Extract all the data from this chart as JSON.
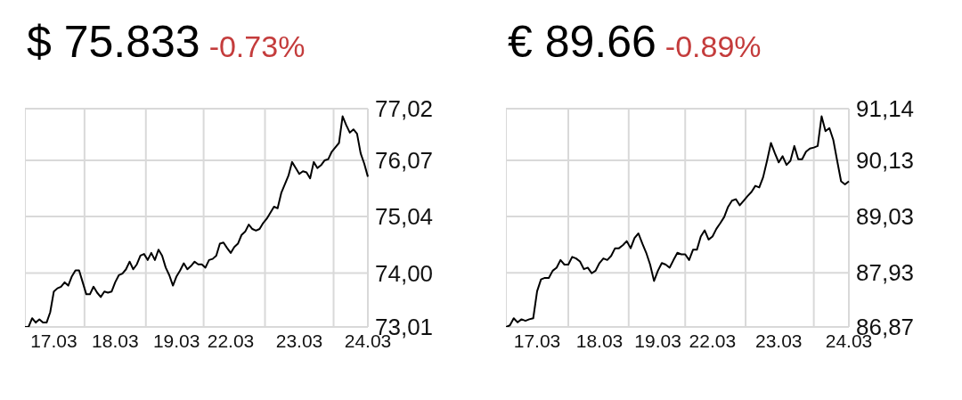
{
  "chart_data": [
    {
      "type": "line",
      "title": "$ 75.833",
      "subtitle": "-0.73%",
      "color": "#000000",
      "grid": true,
      "ylim": [
        73.01,
        77.02
      ],
      "yticks": [
        {
          "value": 73.01,
          "label": "73,01"
        },
        {
          "value": 74.0,
          "label": "74,00"
        },
        {
          "value": 75.04,
          "label": "75,04"
        },
        {
          "value": 76.07,
          "label": "76,07"
        },
        {
          "value": 77.02,
          "label": "77,02"
        }
      ],
      "categories": [
        null,
        null,
        null,
        null,
        null,
        null,
        null,
        null,
        "17.03",
        null,
        null,
        null,
        null,
        null,
        null,
        null,
        null,
        null,
        null,
        null,
        null,
        null,
        null,
        null,
        null,
        "18.03",
        null,
        null,
        null,
        null,
        null,
        null,
        null,
        null,
        null,
        null,
        null,
        null,
        null,
        null,
        null,
        null,
        "19.03",
        null,
        null,
        null,
        null,
        null,
        null,
        null,
        null,
        null,
        null,
        null,
        null,
        null,
        null,
        "22.03",
        null,
        null,
        null,
        null,
        null,
        null,
        null,
        null,
        null,
        null,
        null,
        null,
        null,
        null,
        null,
        null,
        null,
        null,
        "23.03",
        null,
        null,
        null,
        null,
        null,
        null,
        null,
        null,
        null,
        null,
        null,
        null,
        null,
        null,
        null,
        null,
        null,
        null,
        "24.03"
      ],
      "values": [
        73.01,
        73.01,
        73.17,
        73.09,
        73.15,
        73.09,
        73.09,
        73.28,
        73.66,
        73.72,
        73.75,
        73.83,
        73.77,
        73.94,
        74.05,
        74.05,
        73.83,
        73.61,
        73.61,
        73.75,
        73.64,
        73.56,
        73.66,
        73.64,
        73.66,
        73.83,
        73.96,
        73.99,
        74.07,
        74.21,
        74.07,
        74.16,
        74.32,
        74.35,
        74.24,
        74.37,
        74.24,
        74.43,
        74.32,
        74.1,
        73.96,
        73.77,
        73.94,
        74.05,
        74.18,
        74.07,
        74.13,
        74.21,
        74.16,
        74.16,
        74.1,
        74.24,
        74.26,
        74.32,
        74.54,
        74.56,
        74.46,
        74.37,
        74.48,
        74.54,
        74.7,
        74.76,
        74.89,
        74.81,
        74.78,
        74.81,
        74.92,
        75.0,
        75.11,
        75.22,
        75.19,
        75.47,
        75.63,
        75.79,
        76.04,
        75.93,
        75.82,
        75.87,
        75.85,
        75.74,
        76.04,
        75.93,
        75.98,
        76.07,
        76.09,
        76.23,
        76.31,
        76.39,
        76.88,
        76.72,
        76.58,
        76.64,
        76.56,
        76.2,
        76.01,
        75.77
      ]
    },
    {
      "type": "line",
      "title": "€ 89.66",
      "subtitle": "-0.89%",
      "color": "#000000",
      "grid": true,
      "ylim": [
        86.87,
        91.14
      ],
      "yticks": [
        {
          "value": 86.87,
          "label": "86,87"
        },
        {
          "value": 87.93,
          "label": "87,93"
        },
        {
          "value": 89.03,
          "label": "89,03"
        },
        {
          "value": 90.13,
          "label": "90,13"
        },
        {
          "value": 91.14,
          "label": "91,14"
        }
      ],
      "categories": [
        null,
        null,
        null,
        null,
        null,
        null,
        null,
        null,
        "17.03",
        null,
        null,
        null,
        null,
        null,
        null,
        null,
        null,
        null,
        null,
        null,
        null,
        null,
        null,
        null,
        "18.03",
        null,
        null,
        null,
        null,
        null,
        null,
        null,
        null,
        null,
        null,
        null,
        null,
        null,
        null,
        "19.03",
        null,
        null,
        null,
        null,
        null,
        null,
        null,
        null,
        null,
        null,
        null,
        null,
        null,
        "22.03",
        null,
        null,
        null,
        null,
        null,
        null,
        null,
        null,
        null,
        null,
        null,
        null,
        null,
        null,
        null,
        null,
        "23.03",
        null,
        null,
        null,
        null,
        null,
        null,
        null,
        null,
        null,
        null,
        null,
        null,
        null,
        null,
        null,
        null,
        null,
        "24.03"
      ],
      "values": [
        86.87,
        86.9,
        87.04,
        86.96,
        87.02,
        86.99,
        87.02,
        87.04,
        87.57,
        87.8,
        87.83,
        87.83,
        87.97,
        88.03,
        88.18,
        88.09,
        88.09,
        88.24,
        88.21,
        88.15,
        88.0,
        88.03,
        87.92,
        87.97,
        88.12,
        88.21,
        88.18,
        88.26,
        88.41,
        88.41,
        88.47,
        88.55,
        88.41,
        88.61,
        88.7,
        88.5,
        88.32,
        88.09,
        87.77,
        87.97,
        88.12,
        88.09,
        88.03,
        88.18,
        88.32,
        88.29,
        88.29,
        88.18,
        88.38,
        88.38,
        88.64,
        88.76,
        88.58,
        88.64,
        88.79,
        88.9,
        89.02,
        89.22,
        89.34,
        89.37,
        89.25,
        89.34,
        89.43,
        89.51,
        89.63,
        89.6,
        89.8,
        90.12,
        90.47,
        90.27,
        90.09,
        90.21,
        90.04,
        90.12,
        90.41,
        90.15,
        90.15,
        90.3,
        90.36,
        90.38,
        90.41,
        90.99,
        90.7,
        90.76,
        90.53,
        90.12,
        89.72,
        89.66,
        89.72
      ]
    }
  ]
}
